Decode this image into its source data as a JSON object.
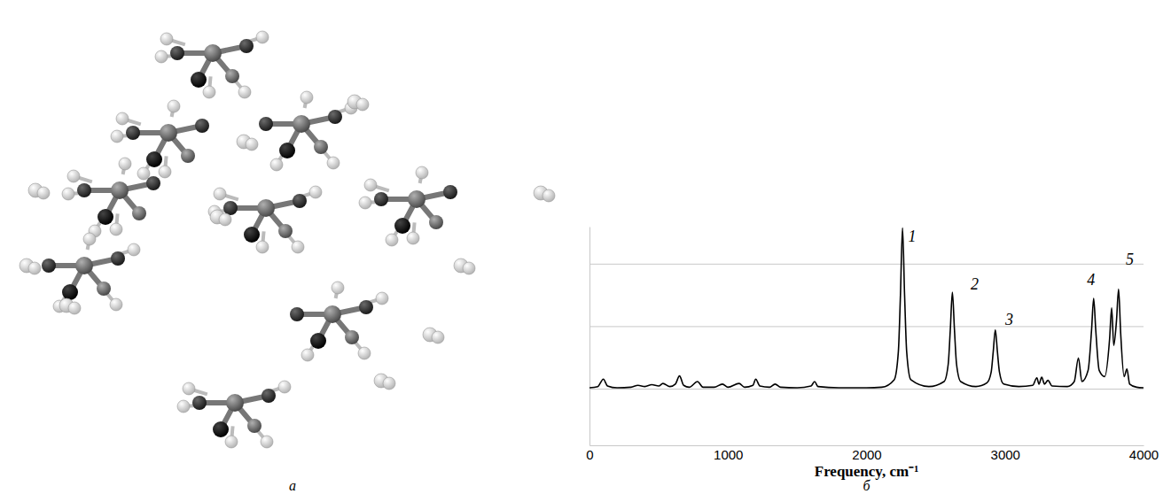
{
  "figure_labels": [
    "а",
    "б"
  ],
  "chart_data": {
    "type": "line",
    "x_label": "Frequency, cm⁻¹",
    "x": [
      0,
      60,
      100,
      130,
      200,
      300,
      350,
      400,
      450,
      500,
      530,
      580,
      620,
      650,
      680,
      720,
      780,
      820,
      900,
      960,
      1000,
      1080,
      1120,
      1180,
      1200,
      1230,
      1300,
      1340,
      1380,
      1500,
      1600,
      1625,
      1650,
      1800,
      2000,
      2110,
      2200,
      2230,
      2245,
      2260,
      2275,
      2290,
      2320,
      2450,
      2560,
      2590,
      2605,
      2620,
      2635,
      2650,
      2680,
      2790,
      2870,
      2900,
      2915,
      2930,
      2945,
      2960,
      2990,
      3100,
      3200,
      3230,
      3245,
      3265,
      3285,
      3310,
      3340,
      3450,
      3500,
      3530,
      3555,
      3600,
      3625,
      3640,
      3655,
      3680,
      3720,
      3755,
      3770,
      3785,
      3805,
      3820,
      3835,
      3860,
      3880,
      3900,
      3950,
      4000
    ],
    "values": [
      0.02,
      0.04,
      0.16,
      0.05,
      0.02,
      0.03,
      0.06,
      0.04,
      0.07,
      0.05,
      0.09,
      0.04,
      0.08,
      0.21,
      0.06,
      0.03,
      0.12,
      0.03,
      0.03,
      0.08,
      0.03,
      0.09,
      0.03,
      0.06,
      0.16,
      0.05,
      0.03,
      0.08,
      0.03,
      0.02,
      0.05,
      0.12,
      0.04,
      0.02,
      0.02,
      0.03,
      0.15,
      0.6,
      1.5,
      2.58,
      1.5,
      0.6,
      0.15,
      0.04,
      0.12,
      0.4,
      0.95,
      1.55,
      0.95,
      0.4,
      0.12,
      0.04,
      0.1,
      0.27,
      0.6,
      0.95,
      0.6,
      0.27,
      0.08,
      0.04,
      0.06,
      0.18,
      0.08,
      0.19,
      0.08,
      0.14,
      0.05,
      0.04,
      0.12,
      0.5,
      0.12,
      0.3,
      0.95,
      1.45,
      0.95,
      0.3,
      0.2,
      0.8,
      1.3,
      0.7,
      1.1,
      1.6,
      0.9,
      0.2,
      0.32,
      0.08,
      0.03,
      0.02
    ],
    "color": "#000000",
    "xlim": [
      0,
      4000
    ],
    "xticks": [
      0,
      1000,
      2000,
      3000,
      4000
    ],
    "ylim": [
      -0.9,
      2.6
    ],
    "yticks": [
      0,
      1,
      2
    ],
    "grid": true,
    "tick_labels": "x",
    "annotations": [
      {
        "text": "1",
        "x": 2330,
        "y": 2.42
      },
      {
        "text": "2",
        "x": 2780,
        "y": 1.65
      },
      {
        "text": "3",
        "x": 3030,
        "y": 1.08
      },
      {
        "text": "4",
        "x": 3620,
        "y": 1.72
      },
      {
        "text": "5",
        "x": 3900,
        "y": 2.05
      }
    ]
  }
}
